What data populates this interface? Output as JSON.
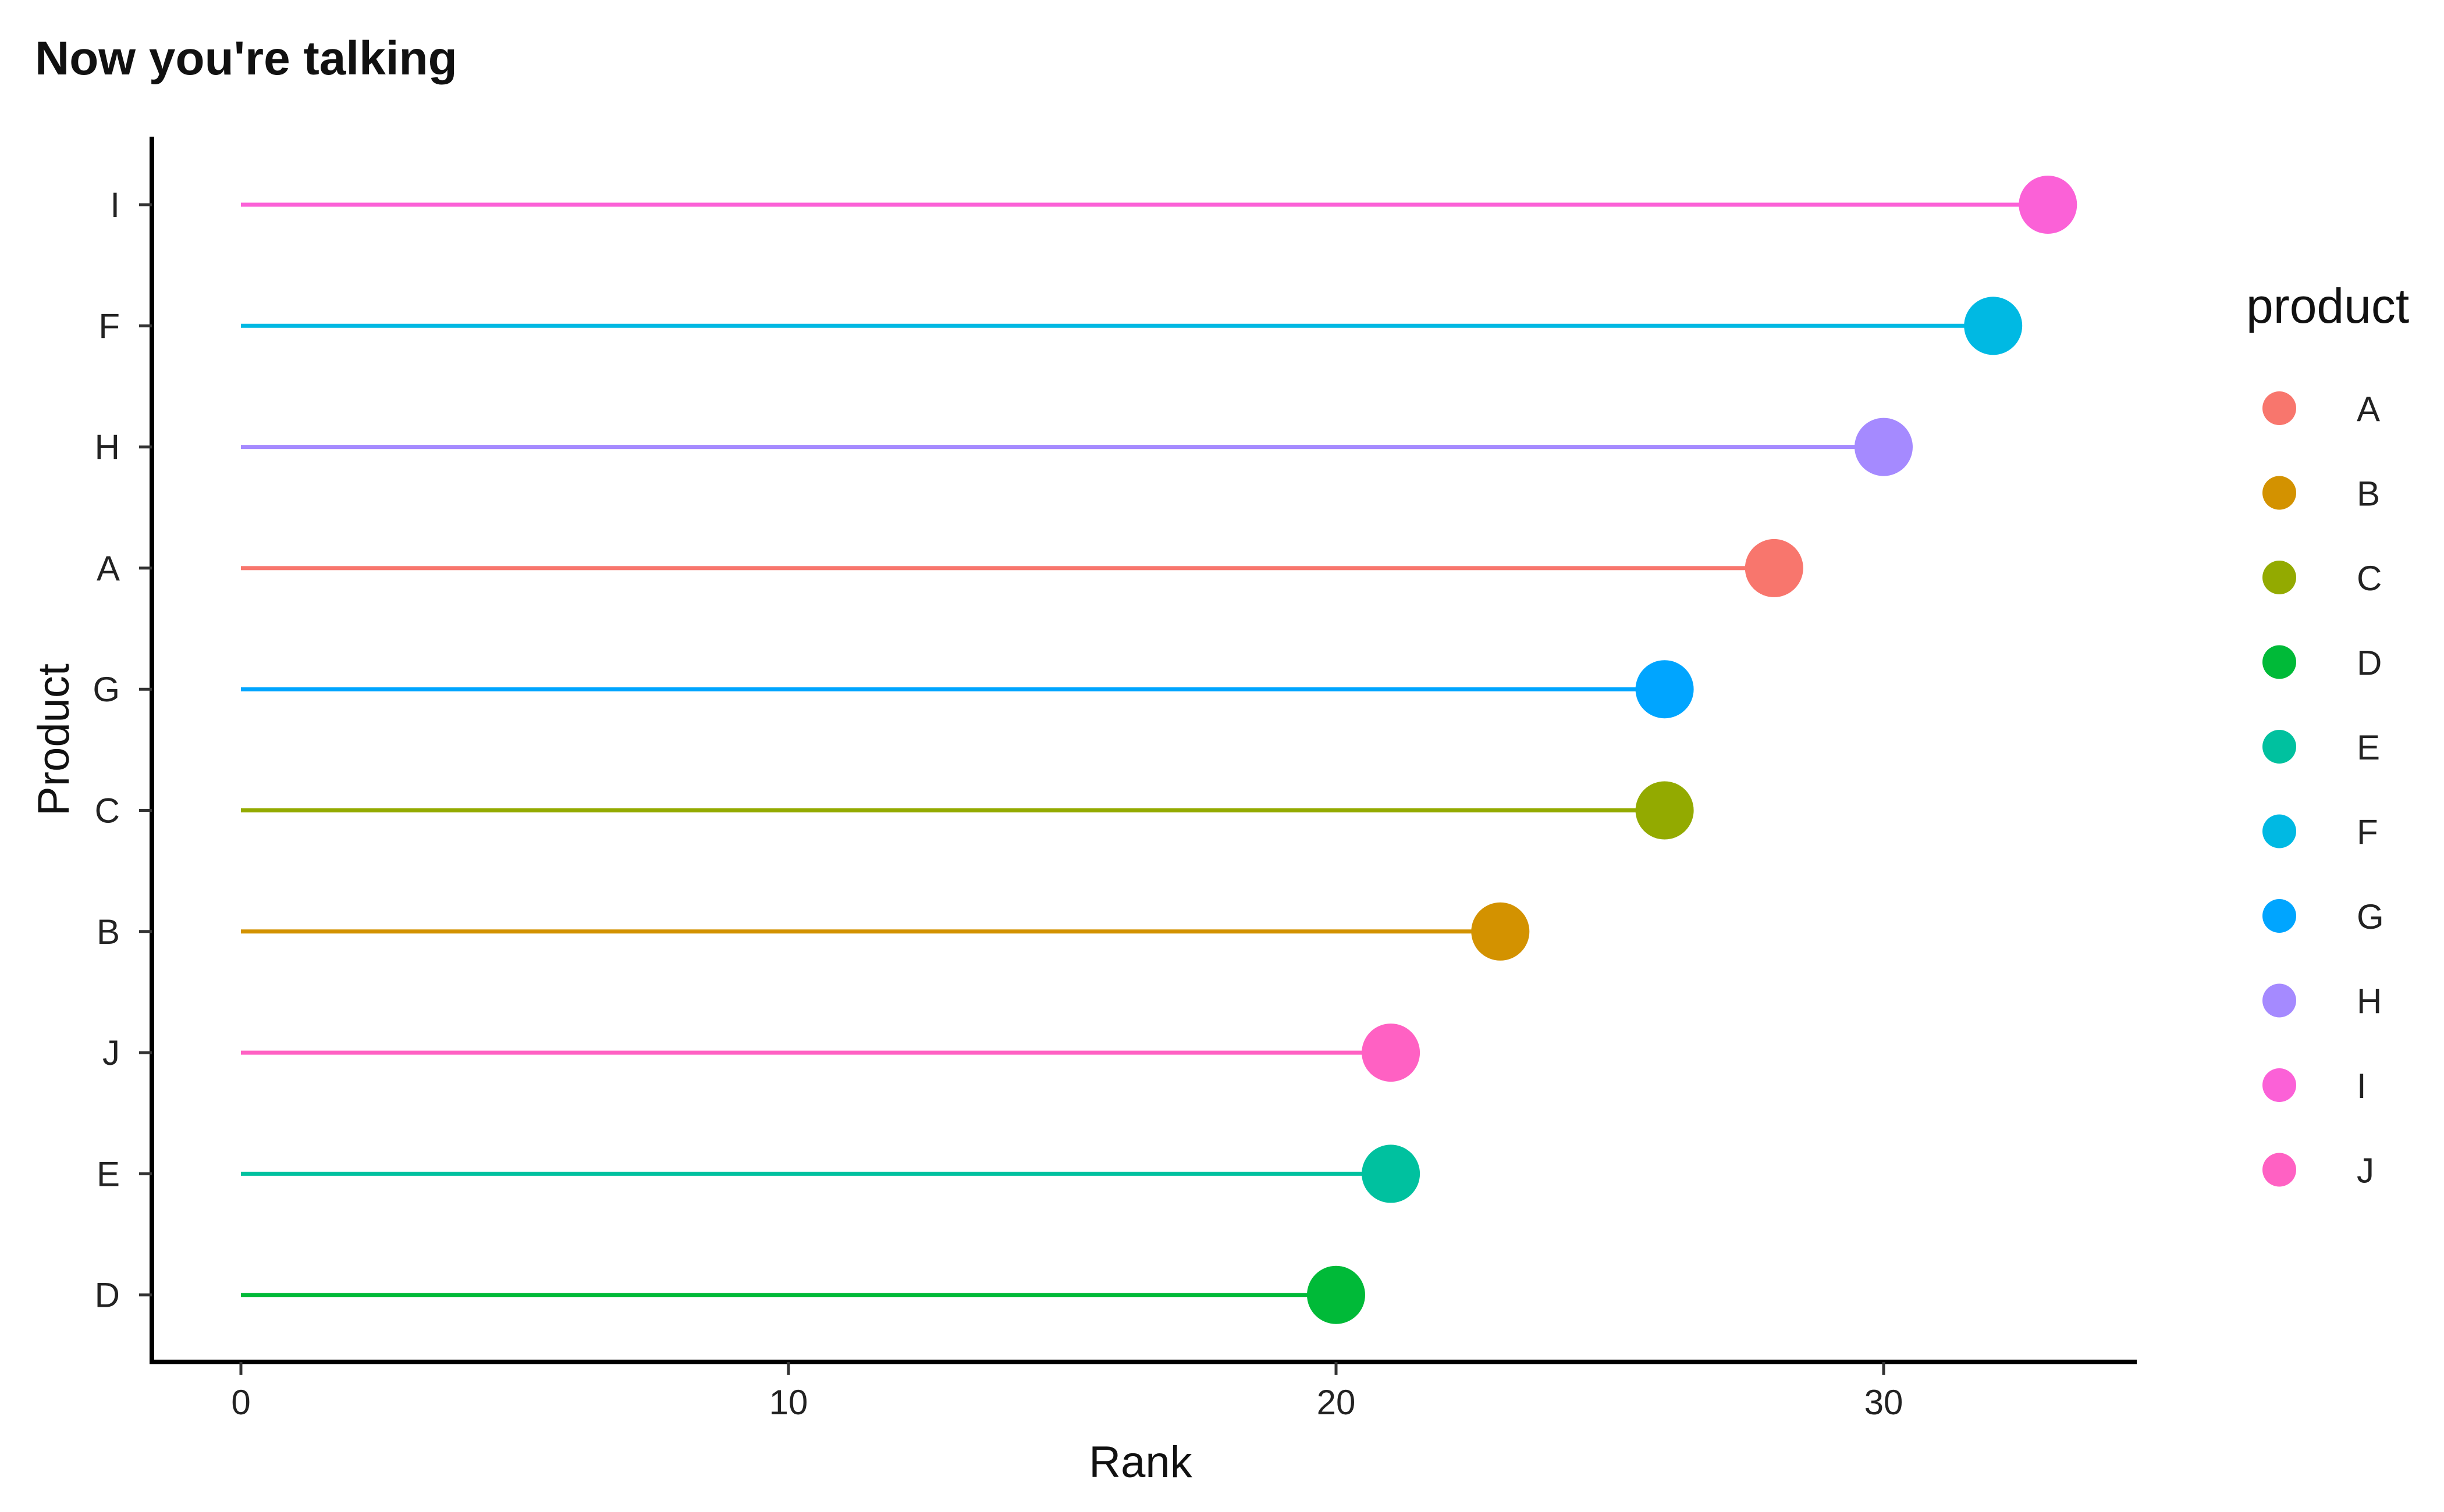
{
  "chart_data": {
    "type": "lollipop",
    "title": "Now you're talking",
    "xlabel": "Rank",
    "ylabel": "Product",
    "xlim": [
      -1.6,
      34.6
    ],
    "xticks": [
      0,
      10,
      20,
      30
    ],
    "grid": false,
    "categories": [
      "I",
      "F",
      "H",
      "A",
      "G",
      "C",
      "B",
      "J",
      "E",
      "D"
    ],
    "values": [
      33,
      32,
      30,
      28,
      26,
      26,
      23,
      21,
      21,
      20
    ],
    "legend": {
      "title": "product",
      "placement": "right",
      "entries": [
        "A",
        "B",
        "C",
        "D",
        "E",
        "F",
        "G",
        "H",
        "I",
        "J"
      ]
    },
    "colors": {
      "A": "#F8766D",
      "B": "#D39200",
      "C": "#93AA00",
      "D": "#00BA38",
      "E": "#00C19F",
      "F": "#00B9E3",
      "G": "#00A5FF",
      "H": "#A58AFF",
      "I": "#FB61D7",
      "J": "#FF61C3"
    }
  }
}
